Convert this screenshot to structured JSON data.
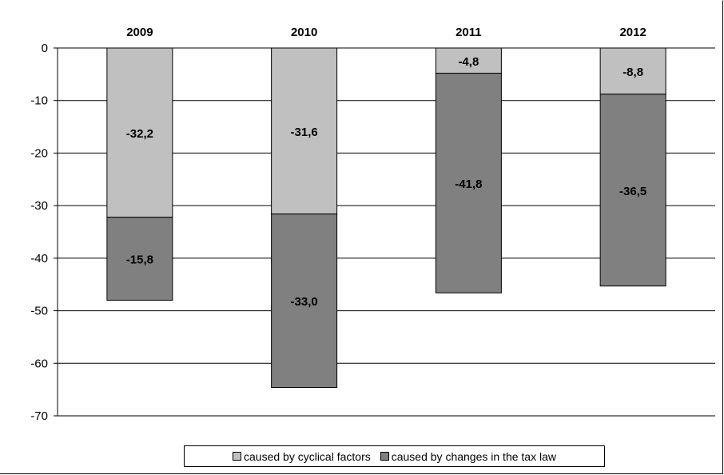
{
  "chart_data": {
    "type": "bar",
    "stacked": true,
    "categories": [
      "2009",
      "2010",
      "2011",
      "2012"
    ],
    "series": [
      {
        "name": "caused by cyclical factors",
        "values": [
          -32.2,
          -31.6,
          -4.8,
          -8.8
        ],
        "labels": [
          "-32,2",
          "-31,6",
          "-4,8",
          "-8,8"
        ],
        "color": "#c0c0c0"
      },
      {
        "name": "caused by changes in the tax law",
        "values": [
          -15.8,
          -33.0,
          -41.8,
          -36.5
        ],
        "labels": [
          "-15,8",
          "-33,0",
          "-41,8",
          "-36,5"
        ],
        "color": "#808080"
      }
    ],
    "ylim": [
      -70,
      0
    ],
    "yticks": [
      0,
      -10,
      -20,
      -30,
      -40,
      -50,
      -60,
      -70
    ],
    "ytick_labels": [
      "0",
      "-10",
      "-20",
      "-30",
      "-40",
      "-50",
      "-60",
      "-70"
    ],
    "grid": true,
    "category_axis_position": "top",
    "legend_position": "bottom"
  }
}
